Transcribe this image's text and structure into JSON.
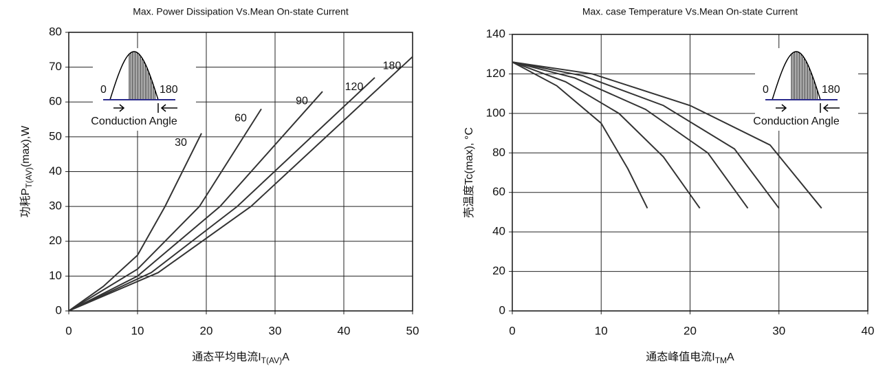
{
  "chart_data": [
    {
      "type": "line",
      "title": "Max. Power Dissipation Vs.Mean On-state Current",
      "ylabel": "功耗P",
      "ylabel_sub": "T(AV)",
      "ylabel_end": "(max),W",
      "xlabel": "通态平均电流I",
      "xlabel_sub": "T(AV)",
      "xlabel_end": "A",
      "xlim": [
        0,
        50
      ],
      "ylim": [
        0,
        80
      ],
      "xticks": [
        0,
        10,
        20,
        30,
        40,
        50
      ],
      "yticks": [
        0,
        10,
        20,
        30,
        40,
        50,
        60,
        70,
        80
      ],
      "grid": true,
      "color": "#333333",
      "inset": {
        "start": "0",
        "end": "180",
        "caption": "Conduction Angle"
      },
      "series": [
        {
          "name": "30",
          "x": [
            0,
            5,
            10,
            14,
            19.3
          ],
          "values": [
            0,
            7,
            16,
            30,
            51
          ]
        },
        {
          "name": "60",
          "x": [
            0,
            10,
            19,
            28
          ],
          "values": [
            0,
            12,
            30,
            58
          ]
        },
        {
          "name": "90",
          "x": [
            0,
            10,
            22,
            36.9
          ],
          "values": [
            0,
            10,
            30,
            63
          ]
        },
        {
          "name": "120",
          "x": [
            0,
            12,
            24.5,
            44.5
          ],
          "values": [
            0,
            11,
            30,
            67
          ]
        },
        {
          "name": "180",
          "x": [
            0,
            13,
            26.5,
            50
          ],
          "values": [
            0,
            11,
            30,
            73
          ]
        }
      ]
    },
    {
      "type": "line",
      "title": "Max. case Temperature Vs.Mean On-state Current",
      "ylabel": "壳温度Tc(max), °C",
      "xlabel": "通态峰值电流I",
      "xlabel_sub": "TM",
      "xlabel_end": "A",
      "xlim": [
        0,
        40
      ],
      "ylim": [
        0,
        140
      ],
      "xticks": [
        0,
        10,
        20,
        30,
        40
      ],
      "yticks": [
        0,
        20,
        40,
        60,
        80,
        100,
        120,
        140
      ],
      "grid": true,
      "color": "#333333",
      "inset": {
        "start": "0",
        "end": "180",
        "caption": "Conduction Angle"
      },
      "series": [
        {
          "x": [
            0,
            5,
            10,
            13,
            15.2
          ],
          "values": [
            126,
            114,
            95,
            72,
            52
          ]
        },
        {
          "x": [
            0,
            6,
            12,
            17,
            21.1
          ],
          "values": [
            126,
            116,
            100,
            78,
            52
          ]
        },
        {
          "x": [
            0,
            7,
            15,
            22,
            26.5
          ],
          "values": [
            126,
            118,
            102,
            80,
            52
          ]
        },
        {
          "x": [
            0,
            8,
            17,
            25,
            30
          ],
          "values": [
            126,
            119,
            104,
            82,
            52
          ]
        },
        {
          "x": [
            0,
            9,
            20,
            29,
            34.8
          ],
          "values": [
            126,
            120,
            104,
            84,
            52
          ]
        }
      ]
    }
  ]
}
